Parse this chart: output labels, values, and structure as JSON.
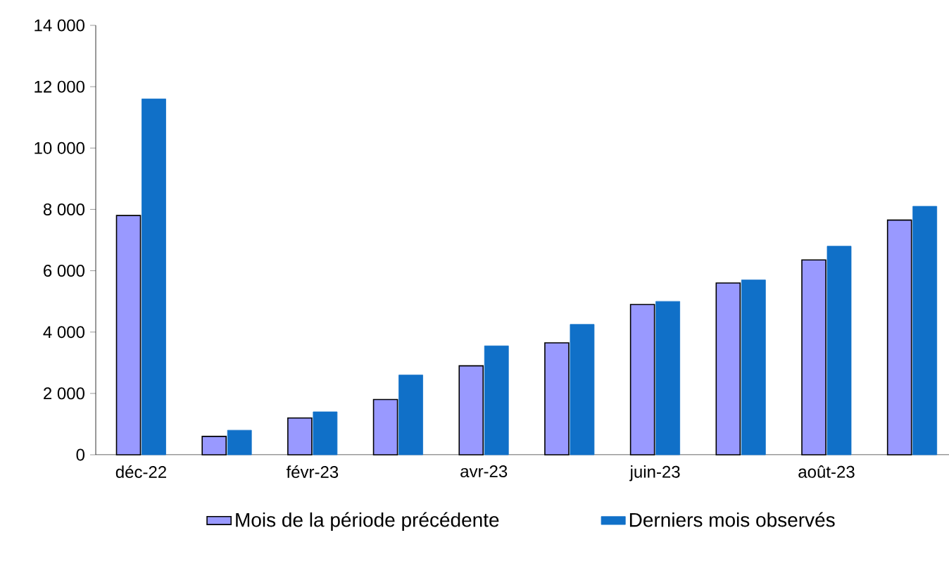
{
  "chart_data": {
    "type": "bar",
    "categories": [
      "déc-22",
      null,
      "févr-23",
      null,
      "avr-23",
      null,
      "juin-23",
      null,
      "août-23",
      null
    ],
    "series": [
      {
        "name": "Mois de la période précédente",
        "color": "#9999ff",
        "values": [
          7800,
          600,
          1200,
          1800,
          2900,
          3650,
          4900,
          5600,
          6350,
          7650
        ]
      },
      {
        "name": "Derniers mois observés",
        "color": "#1070c8",
        "values": [
          11600,
          800,
          1400,
          2600,
          3550,
          4250,
          5000,
          5700,
          6800,
          8100
        ]
      }
    ],
    "ylim": [
      0,
      14000
    ],
    "yticks": [
      0,
      {
        "value": 2000,
        "label": "2 000"
      },
      {
        "value": 4000,
        "label": "4 000"
      },
      {
        "value": 6000,
        "label": "6 000"
      },
      {
        "value": 8000,
        "label": "8 000"
      },
      {
        "value": 10000,
        "label": "10 000"
      },
      {
        "value": 12000,
        "label": "12 000"
      },
      {
        "value": 14000,
        "label": "14 000"
      }
    ],
    "legend": "bottom"
  }
}
